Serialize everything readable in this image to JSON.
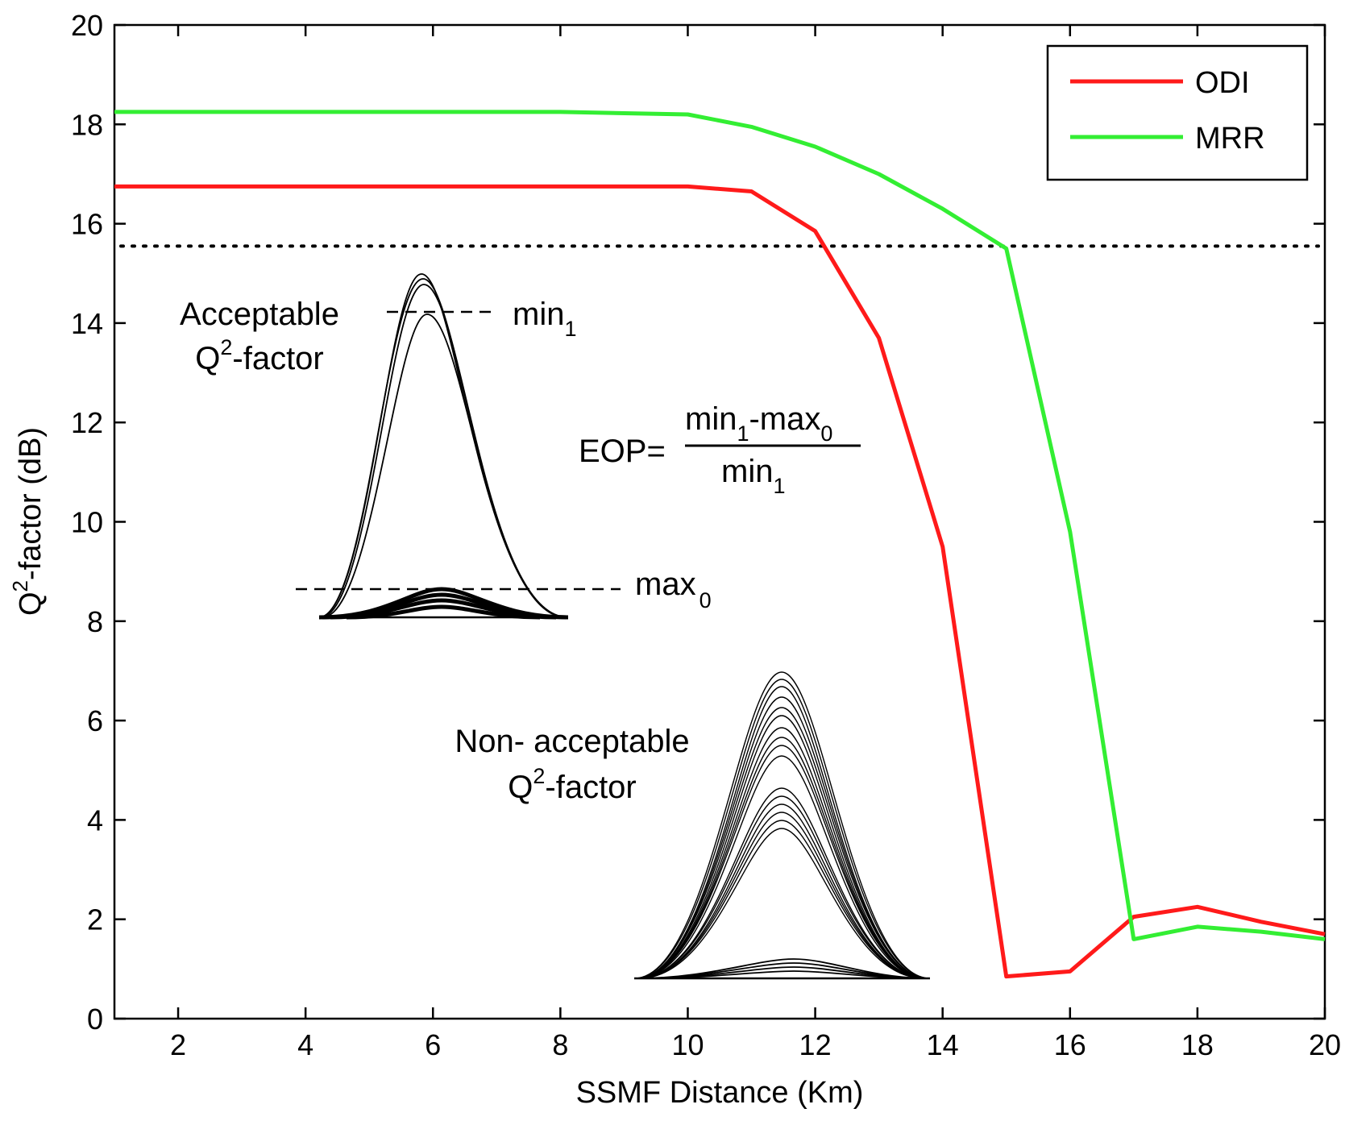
{
  "chart_data": {
    "type": "line",
    "title": "",
    "xlabel": "SSMF Distance (Km)",
    "ylabel_main": "Q",
    "ylabel_sup": "2",
    "ylabel_rest": "-factor (dB)",
    "xlim": [
      1,
      20
    ],
    "ylim": [
      0,
      20
    ],
    "x_ticks": [
      2,
      4,
      6,
      8,
      10,
      12,
      14,
      16,
      18,
      20
    ],
    "y_ticks": [
      0,
      2,
      4,
      6,
      8,
      10,
      12,
      14,
      16,
      18,
      20
    ],
    "grid": false,
    "legend_position": "top-right",
    "threshold": 15.55,
    "series": [
      {
        "name": "ODI",
        "color": "#ff1a1a",
        "x": [
          1,
          2,
          4,
          6,
          8,
          10,
          11,
          12,
          13,
          14,
          15,
          16,
          17,
          18,
          19,
          20
        ],
        "y": [
          16.75,
          16.75,
          16.75,
          16.75,
          16.75,
          16.75,
          16.65,
          15.85,
          13.7,
          9.5,
          0.85,
          0.95,
          2.05,
          2.25,
          1.95,
          1.7
        ]
      },
      {
        "name": "MRR",
        "color": "#33ee33",
        "x": [
          1,
          2,
          4,
          6,
          8,
          10,
          11,
          12,
          13,
          14,
          15,
          16,
          17,
          18,
          19,
          20
        ],
        "y": [
          18.25,
          18.25,
          18.25,
          18.25,
          18.25,
          18.2,
          17.95,
          17.55,
          17.0,
          16.3,
          15.5,
          9.8,
          1.6,
          1.85,
          1.75,
          1.6
        ]
      }
    ],
    "annotations": {
      "acceptable_line1": "Acceptable",
      "acceptable_q": "Q",
      "acceptable_sup": "2",
      "acceptable_rest": "-factor",
      "min_label": "min",
      "min_sub": "1",
      "max_label": "max",
      "max_sub": "0",
      "eop_prefix": "EOP=",
      "eop_num_a": "min",
      "eop_num_a_sub": "1",
      "eop_num_b": "-max",
      "eop_num_b_sub": "0",
      "eop_den": "min",
      "eop_den_sub": "1",
      "nonacc_line1": "Non- acceptable",
      "nonacc_q": "Q",
      "nonacc_sup": "2",
      "nonacc_rest": "-factor"
    }
  }
}
